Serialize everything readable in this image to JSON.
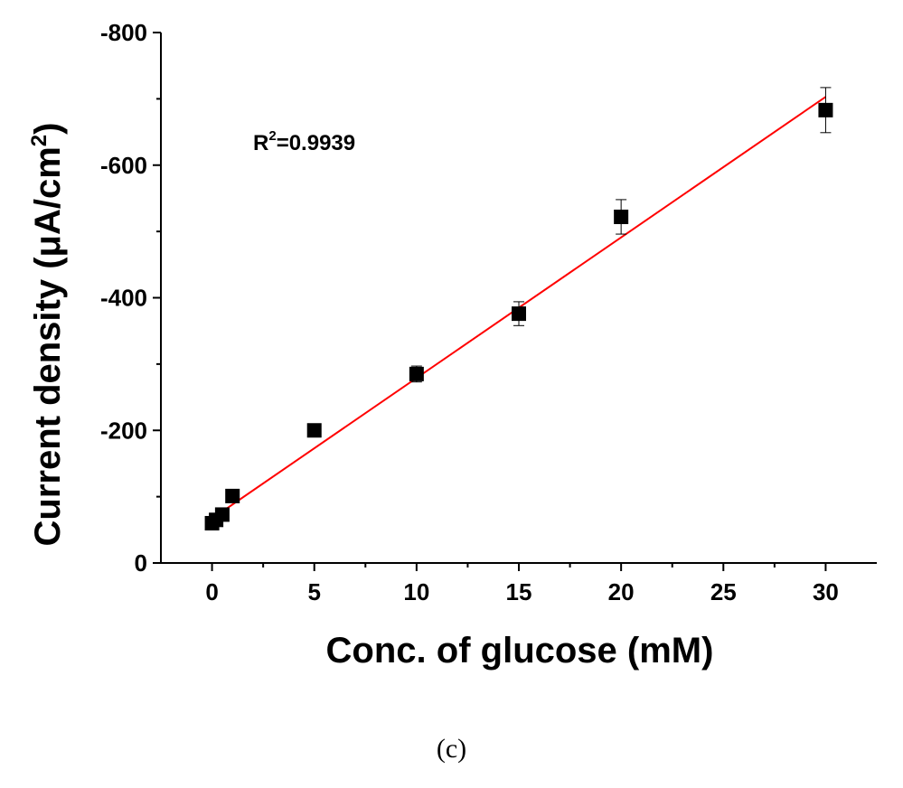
{
  "caption": "(c)",
  "annotation": {
    "prefix": "R",
    "sup": "2",
    "suffix": "=0.9939"
  },
  "chart_data": {
    "type": "scatter",
    "xlabel": "Conc. of glucose (mM)",
    "ylabel_main": "Current density (μA/cm",
    "ylabel_sup": "2",
    "ylabel_close": ")",
    "xlim": [
      -2.5,
      32.5
    ],
    "ylim": [
      0,
      -800
    ],
    "xticks": [
      0,
      5,
      10,
      15,
      20,
      25,
      30
    ],
    "yticks": [
      0,
      -200,
      -400,
      -600,
      -800
    ],
    "ytick_labels": [
      "0",
      "-200",
      "-400",
      "-600",
      "-800"
    ],
    "points": [
      {
        "x": 0,
        "y": -60,
        "err": 5
      },
      {
        "x": 0.2,
        "y": -65,
        "err": 5
      },
      {
        "x": 0.5,
        "y": -73,
        "err": 6
      },
      {
        "x": 1,
        "y": -101,
        "err": 6
      },
      {
        "x": 5,
        "y": -200,
        "err": 6
      },
      {
        "x": 10,
        "y": -285,
        "err": 12
      },
      {
        "x": 15,
        "y": -376,
        "err": 18
      },
      {
        "x": 20,
        "y": -522,
        "err": 26
      },
      {
        "x": 30,
        "y": -683,
        "err": 34
      }
    ],
    "fit": {
      "x1": 0,
      "y1": -67,
      "x2": 30,
      "y2": -703,
      "r_squared": 0.9939
    },
    "marker_color": "#000000",
    "fit_color": "#ff0000",
    "grid": false,
    "legend": "none"
  }
}
